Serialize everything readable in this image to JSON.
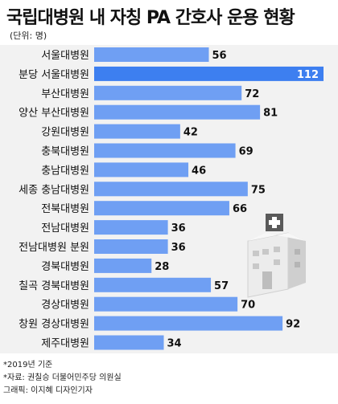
{
  "title": "국립대병원 내 자칭 PA 간호사 운용 현황",
  "unit": "(단위: 명)",
  "notes": [
    "*2019년 기준",
    "*자료: 권칠승 더불어민주당 의원실",
    "그래픽: 이지혜 디자인기자"
  ],
  "colors": {
    "bar": "#6f9ff3",
    "highlight": "#3d7ff0",
    "background": "#f2f2f2"
  },
  "chart_data": {
    "type": "bar",
    "orientation": "horizontal",
    "title": "국립대병원 내 자칭 PA 간호사 운용 현황",
    "unit": "명",
    "categories": [
      "서울대병원",
      "분당 서울대병원",
      "부산대병원",
      "양산 부산대병원",
      "강원대병원",
      "충북대병원",
      "충남대병원",
      "세종 충남대병원",
      "전북대병원",
      "전남대병원",
      "전남대병원 분원",
      "경북대병원",
      "칠곡 경북대병원",
      "경상대병원",
      "창원 경상대병원",
      "제주대병원"
    ],
    "values": [
      56,
      112,
      72,
      81,
      42,
      69,
      46,
      75,
      66,
      36,
      36,
      28,
      57,
      70,
      92,
      34
    ],
    "highlight_index": 1,
    "xlim": [
      0,
      112
    ]
  }
}
